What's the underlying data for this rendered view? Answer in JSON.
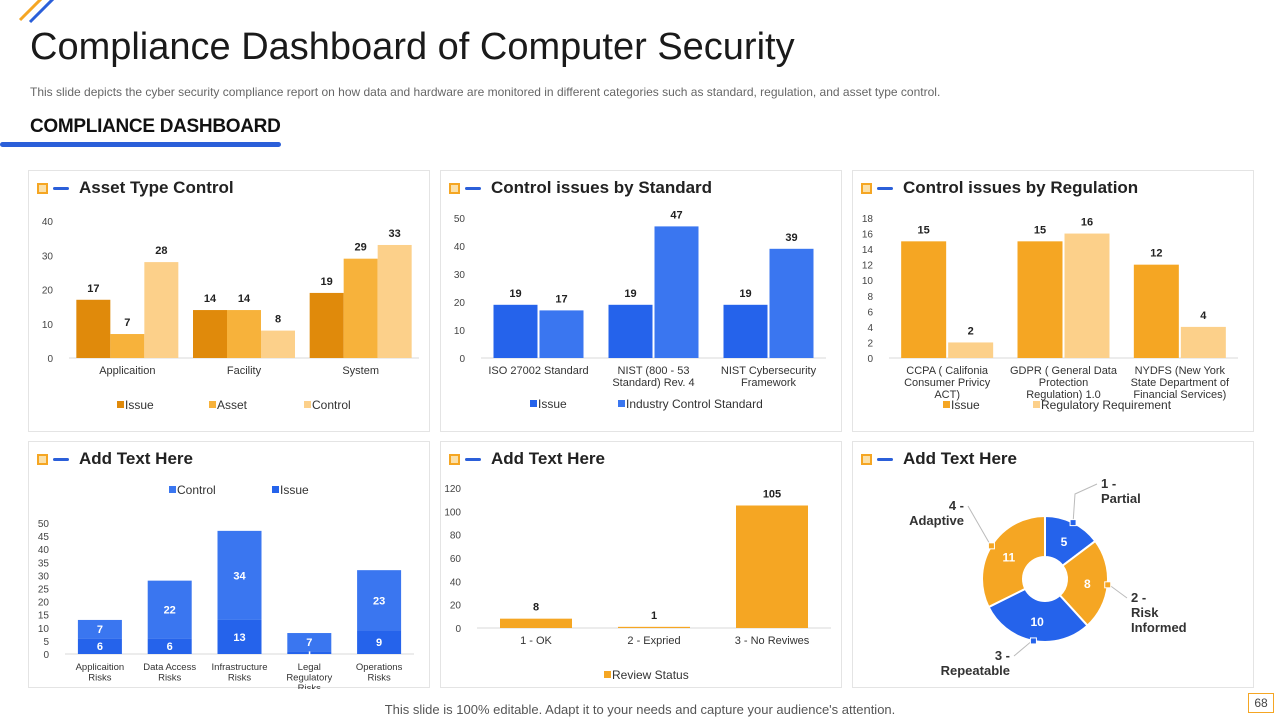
{
  "slide": {
    "title": "Compliance Dashboard of Computer Security",
    "subtitle": "This slide depicts the cyber security compliance report on how data and hardware are monitored in different categories such as standard, regulation, and asset type control.",
    "section_title": "COMPLIANCE DASHBOARD",
    "footer": "This slide is 100% editable. Adapt it to your needs and capture your audience's attention.",
    "page_number": "68"
  },
  "colors": {
    "accent_blue": "#2b5fd9",
    "accent_orange": "#f5a623",
    "panel_border": "#e4e4e4"
  },
  "panels": {
    "asset": {
      "title": "Asset Type Control"
    },
    "standard": {
      "title": "Control issues by Standard"
    },
    "regulation": {
      "title": "Control issues by Regulation"
    },
    "risks": {
      "title": "Add Text Here"
    },
    "review": {
      "title": "Add Text Here"
    },
    "maturity": {
      "title": "Add Text Here"
    }
  },
  "chart_data": [
    {
      "id": "asset",
      "type": "bar",
      "title": "Asset Type Control",
      "categories": [
        "Applicaition",
        "Facility",
        "System"
      ],
      "series": [
        {
          "name": "Issue",
          "values": [
            17,
            14,
            19
          ],
          "color": "#e08a0b"
        },
        {
          "name": "Asset",
          "values": [
            7,
            14,
            29
          ],
          "color": "#f7b23b"
        },
        {
          "name": "Control",
          "values": [
            28,
            8,
            33
          ],
          "color": "#fcd08a"
        }
      ],
      "yticks": [
        0,
        10,
        20,
        30,
        40
      ],
      "ylim": [
        0,
        40
      ],
      "legend": "bottom",
      "grid": false
    },
    {
      "id": "standard",
      "type": "bar",
      "title": "Control issues by Standard",
      "categories": [
        "ISO 27002 Standard",
        "NIST (800 - 53 Standard) Rev. 4",
        "NIST Cybersecurity Framework"
      ],
      "series": [
        {
          "name": "Issue",
          "values": [
            19,
            19,
            19
          ],
          "color": "#2563eb"
        },
        {
          "name": "Industry Control Standard",
          "values": [
            17,
            47,
            39
          ],
          "color": "#3a76f0"
        }
      ],
      "yticks": [
        0,
        10,
        20,
        30,
        40,
        50
      ],
      "ylim": [
        0,
        50
      ],
      "legend": "bottom",
      "grid": false
    },
    {
      "id": "regulation",
      "type": "bar",
      "title": "Control issues by Regulation",
      "categories": [
        "CCPA ( Califonia Consumer Privicy ACT)",
        "GDPR ( General Data Protection Regulation) 1.0",
        "NYDFS (New York State Department of Financial Services)"
      ],
      "series": [
        {
          "name": "Issue",
          "values": [
            15,
            15,
            12
          ],
          "color": "#f5a623"
        },
        {
          "name": "Regulatory Requirement",
          "values": [
            2,
            16,
            4
          ],
          "color": "#fcd08a"
        }
      ],
      "yticks": [
        0,
        2,
        4,
        6,
        8,
        10,
        12,
        14,
        16,
        18
      ],
      "ylim": [
        0,
        18
      ],
      "legend": "bottom",
      "grid": false
    },
    {
      "id": "risks",
      "type": "bar",
      "stacked": true,
      "title": "Add Text Here",
      "categories": [
        "Applicaition Risks",
        "Data Access Risks",
        "Infrastructure Risks",
        "Legal Regulatory Risks",
        "Operations Risks"
      ],
      "series": [
        {
          "name": "Issue",
          "values": [
            6,
            6,
            13,
            1,
            9
          ],
          "color": "#2563eb"
        },
        {
          "name": "Control",
          "values": [
            7,
            22,
            34,
            7,
            23
          ],
          "color": "#3a76f0"
        }
      ],
      "legend_order": [
        "Control",
        "Issue"
      ],
      "yticks": [
        0,
        5,
        10,
        15,
        20,
        25,
        30,
        35,
        40,
        45,
        50
      ],
      "ylim": [
        0,
        50
      ],
      "legend": "top",
      "grid": false
    },
    {
      "id": "review",
      "type": "bar",
      "title": "Add Text Here",
      "categories": [
        "1 - OK",
        "2 - Expried",
        "3 - No Reviwes"
      ],
      "series": [
        {
          "name": "Review Status",
          "values": [
            8,
            1,
            105
          ],
          "color": "#f5a623"
        }
      ],
      "yticks": [
        0,
        20,
        40,
        60,
        80,
        100,
        120
      ],
      "ylim": [
        0,
        120
      ],
      "legend": "bottom",
      "grid": false
    },
    {
      "id": "maturity",
      "type": "pie",
      "donut": true,
      "title": "Add Text Here",
      "slices": [
        {
          "label": "1 - Partial",
          "value": 5,
          "color": "#2563eb"
        },
        {
          "label": "2 - Risk Informed",
          "value": 8,
          "color": "#f5a623"
        },
        {
          "label": "3 - Repeatable",
          "value": 10,
          "color": "#2563eb"
        },
        {
          "label": "4 - Adaptive",
          "value": 11,
          "color": "#f5a623"
        }
      ]
    }
  ]
}
